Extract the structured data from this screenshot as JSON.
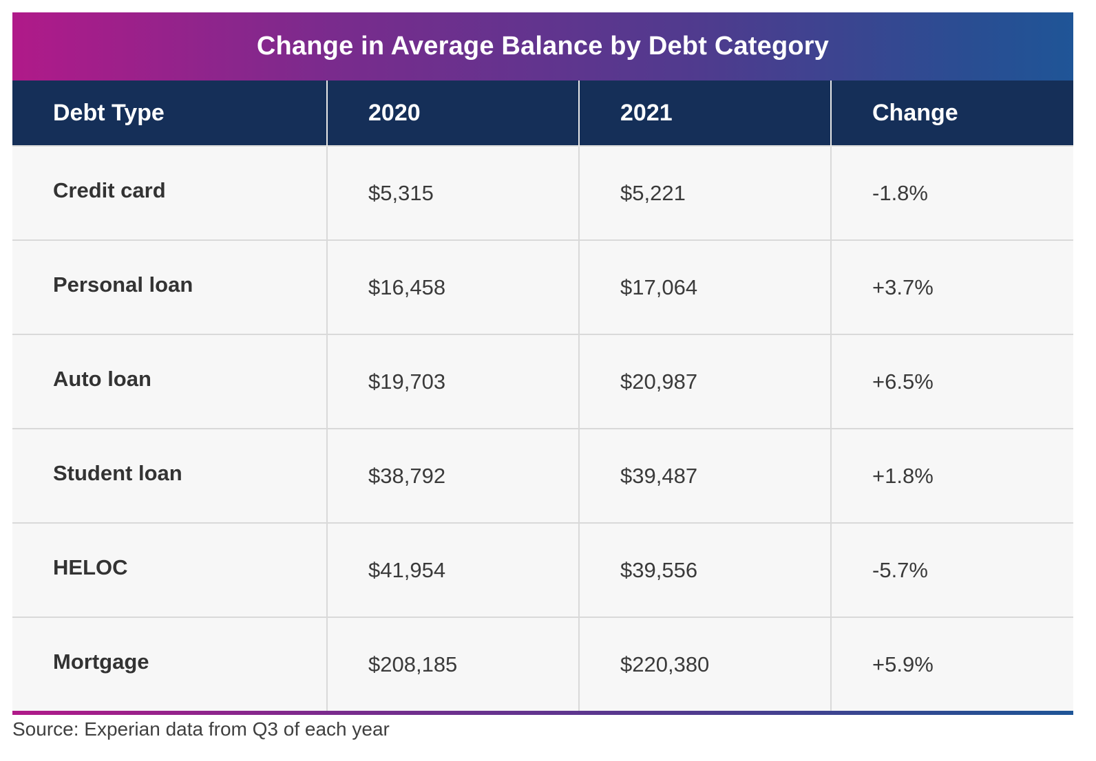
{
  "chart_data": {
    "type": "table",
    "title": "Change in Average Balance by Debt Category",
    "columns": [
      "Debt Type",
      "2020",
      "2021",
      "Change"
    ],
    "rows": [
      [
        "Credit card",
        "$5,315",
        "$5,221",
        "-1.8%"
      ],
      [
        "Personal loan",
        "$16,458",
        "$17,064",
        "+3.7%"
      ],
      [
        "Auto loan",
        "$19,703",
        "$20,987",
        "+6.5%"
      ],
      [
        "Student loan",
        "$38,792",
        "$39,487",
        "+1.8%"
      ],
      [
        "HELOC",
        "$41,954",
        "$39,556",
        "-5.7%"
      ],
      [
        "Mortgage",
        "$208,185",
        "$220,380",
        "+5.9%"
      ]
    ],
    "source": "Source: Experian data from Q3 of each year"
  },
  "colors": {
    "header_bg": "#152f58",
    "gradient_start": "#b01a89",
    "gradient_end": "#1f5597",
    "row_bg": "#f7f7f7"
  }
}
